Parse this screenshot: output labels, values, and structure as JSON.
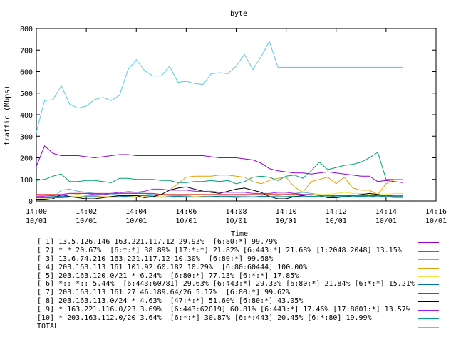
{
  "chart_data": {
    "type": "line",
    "title": "byte",
    "xlabel": "Time",
    "ylabel": "traffic (Mbps)",
    "ylim": [
      0,
      800
    ],
    "yticks": [
      "0",
      "100",
      "200",
      "300",
      "400",
      "500",
      "600",
      "700",
      "800"
    ],
    "xlim_minutes": [
      0,
      16
    ],
    "xticks": [
      {
        "minute": 0,
        "time": "14:00",
        "date": "10/01"
      },
      {
        "minute": 2,
        "time": "14:02",
        "date": "10/01"
      },
      {
        "minute": 4,
        "time": "14:04",
        "date": "10/01"
      },
      {
        "minute": 6,
        "time": "14:06",
        "date": "10/01"
      },
      {
        "minute": 8,
        "time": "14:08",
        "date": "10/01"
      },
      {
        "minute": 10,
        "time": "14:10",
        "date": "10/01"
      },
      {
        "minute": 12,
        "time": "14:12",
        "date": "10/01"
      },
      {
        "minute": 14,
        "time": "14:14",
        "date": "10/01"
      },
      {
        "minute": 16,
        "time": "14:16",
        "date": "10/01"
      }
    ],
    "grid": false,
    "legend_position": "bottom",
    "x": [
      0,
      0.33,
      0.67,
      1,
      1.33,
      1.67,
      2,
      2.33,
      2.67,
      3,
      3.33,
      3.67,
      4,
      4.33,
      4.67,
      5,
      5.33,
      5.67,
      6,
      6.33,
      6.67,
      7,
      7.33,
      7.67,
      8,
      8.33,
      8.67,
      9,
      9.33,
      9.67,
      10,
      10.33,
      10.67,
      11,
      11.33,
      11.67,
      12,
      12.33,
      12.67,
      13,
      13.33,
      13.67,
      14,
      14.33,
      14.67
    ],
    "series": [
      {
        "label": "[ 1] 13.5.126.146 163.221.117.12 29.93%  [6:80:*] 99.79%",
        "color": "#9400d3",
        "values": [
          160,
          255,
          220,
          210,
          210,
          210,
          205,
          200,
          205,
          210,
          215,
          215,
          210,
          210,
          210,
          210,
          210,
          210,
          210,
          210,
          210,
          205,
          200,
          200,
          200,
          195,
          190,
          175,
          150,
          140,
          135,
          130,
          130,
          125,
          130,
          135,
          130,
          125,
          120,
          115,
          115,
          90,
          95,
          90,
          85
        ]
      },
      {
        "label": "[ 2] * * 20.67%  [6:*:*] 38.89% [17:*:*] 21.82% [6:443:*] 21.68% [1:2048:2048] 13.15%",
        "color": "#009e73",
        "values": [
          95,
          100,
          115,
          125,
          90,
          90,
          95,
          95,
          90,
          85,
          105,
          105,
          100,
          100,
          100,
          95,
          95,
          85,
          85,
          90,
          90,
          95,
          90,
          95,
          80,
          90,
          110,
          115,
          110,
          95,
          115,
          120,
          105,
          140,
          180,
          145,
          155,
          165,
          170,
          180,
          200,
          225,
          100,
          100,
          100
        ]
      },
      {
        "label": "[ 3] 13.6.74.210 163.221.117.12 10.30%  [6:80:*] 99.68%",
        "color": "#56b4e9",
        "values": [
          6,
          8,
          15,
          50,
          55,
          45,
          40,
          35,
          30,
          30,
          35,
          45,
          40,
          35,
          30,
          30,
          25,
          25,
          25,
          20,
          20,
          20,
          20,
          20,
          15,
          20,
          20,
          20,
          20,
          25,
          30,
          35,
          40,
          35,
          30,
          25,
          25,
          25,
          25,
          20,
          25,
          25,
          20,
          15,
          15
        ]
      },
      {
        "label": "[ 4] 203.163.113.161 101.92.60.182 10.29%  [6:80:60444] 100.00%",
        "color": "#e69f00",
        "values": [
          25,
          25,
          25,
          25,
          28,
          30,
          25,
          25,
          20,
          20,
          25,
          20,
          25,
          25,
          25,
          30,
          50,
          80,
          110,
          115,
          115,
          115,
          120,
          120,
          115,
          110,
          90,
          80,
          95,
          105,
          110,
          65,
          40,
          90,
          100,
          110,
          80,
          110,
          60,
          50,
          50,
          30,
          80,
          100,
          100
        ]
      },
      {
        "label": "[ 5] 203.163.120.0/21 * 6.24%  [6:80:*] 77.13% [6:*:*] 17.85%",
        "color": "#f0e442",
        "values": [
          10,
          12,
          15,
          15,
          20,
          20,
          20,
          20,
          20,
          18,
          18,
          20,
          20,
          20,
          20,
          20,
          20,
          20,
          20,
          20,
          22,
          22,
          22,
          22,
          24,
          25,
          28,
          30,
          32,
          35,
          35,
          30,
          30,
          32,
          30,
          30,
          35,
          40,
          35,
          35,
          30,
          30,
          30,
          35,
          35
        ]
      },
      {
        "label": "[ 6] *:: *:: 5.44%  [6:443:60781] 29.63% [6:443:*] 29.33% [6:80:*] 21.84% [6:*:*] 15.21%",
        "color": "#0072b2",
        "values": [
          15,
          18,
          20,
          22,
          20,
          18,
          20,
          20,
          18,
          18,
          20,
          22,
          25,
          25,
          20,
          18,
          20,
          22,
          20,
          18,
          20,
          20,
          22,
          22,
          20,
          20,
          18,
          22,
          20,
          18,
          20,
          22,
          20,
          22,
          20,
          18,
          25,
          22,
          20,
          22,
          20,
          25,
          20,
          20,
          20
        ]
      },
      {
        "label": "[ 7] 203.163.113.161 27.46.189.64/26 5.17%  [6:80:*] 99.62%",
        "color": "#e51e10",
        "values": [
          30,
          30,
          30,
          30,
          35,
          35,
          35,
          35,
          35,
          35,
          35,
          35,
          35,
          35,
          35,
          30,
          30,
          30,
          30,
          30,
          30,
          30,
          30,
          30,
          30,
          30,
          30,
          30,
          30,
          30,
          30,
          30,
          30,
          28,
          28,
          28,
          28,
          28,
          28,
          28,
          25,
          25,
          25,
          25,
          25
        ]
      },
      {
        "label": "[ 8] 203.163.113.0/24 * 4.63%  [47:*:*] 51.60% [6:80:*] 43.05%",
        "color": "#000000",
        "values": [
          5,
          5,
          10,
          30,
          20,
          15,
          10,
          10,
          15,
          20,
          25,
          25,
          25,
          15,
          20,
          30,
          50,
          60,
          65,
          55,
          45,
          40,
          35,
          45,
          55,
          60,
          50,
          40,
          20,
          10,
          10,
          20,
          25,
          30,
          25,
          15,
          15,
          20,
          25,
          30,
          35,
          30,
          25,
          20,
          20
        ]
      },
      {
        "label": "[ 9] * 163.221.116.0/23 3.69%  [6:443:62019] 60.81% [6:443:*] 17.46% [17:8801:*] 13.57%",
        "color": "#a020f0",
        "values": [
          20,
          22,
          25,
          30,
          35,
          35,
          35,
          30,
          30,
          35,
          40,
          40,
          40,
          45,
          55,
          55,
          50,
          50,
          50,
          45,
          45,
          45,
          40,
          40,
          40,
          40,
          35,
          35,
          35,
          40,
          40,
          35,
          30,
          30,
          25,
          25,
          25,
          25,
          25,
          25,
          25,
          25,
          25,
          20,
          20
        ]
      },
      {
        "label": "[10] * 203.163.112.0/20 3.64%  [6:*:*] 30.87% [6:*:443] 20.45% [6:*:80] 19.99%",
        "color": "#00a08a",
        "values": [
          15,
          15,
          15,
          15,
          18,
          18,
          18,
          18,
          18,
          18,
          18,
          18,
          18,
          18,
          18,
          18,
          18,
          18,
          18,
          18,
          18,
          18,
          18,
          18,
          18,
          18,
          18,
          18,
          18,
          20,
          20,
          20,
          20,
          20,
          20,
          20,
          20,
          20,
          20,
          20,
          20,
          20,
          20,
          20,
          20
        ]
      },
      {
        "label": "TOTAL",
        "color": "#5ac8e8",
        "values": [
          320,
          465,
          470,
          535,
          450,
          430,
          440,
          470,
          480,
          465,
          490,
          610,
          655,
          605,
          580,
          580,
          625,
          550,
          555,
          545,
          540,
          590,
          595,
          590,
          625,
          680,
          610,
          670,
          740,
          620,
          620,
          620,
          620,
          620,
          620,
          620,
          620,
          620,
          620,
          620,
          620,
          620,
          620,
          620,
          620
        ]
      }
    ]
  }
}
